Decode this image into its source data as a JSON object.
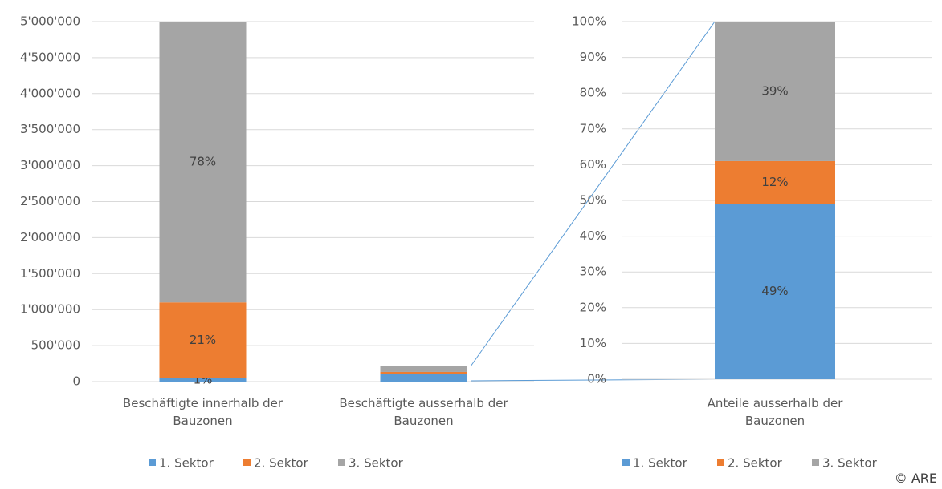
{
  "chart_data": [
    {
      "type": "stacked_bar",
      "categories": [
        "Beschäftigte innerhalb der Bauzonen",
        "Beschäftigte ausserhalb der Bauzonen"
      ],
      "series": [
        {
          "name": "1. Sektor",
          "color": "#5b9bd5",
          "values": [
            50000,
            108000
          ],
          "share_labels": [
            "1%",
            null
          ]
        },
        {
          "name": "2. Sektor",
          "color": "#ed7d31",
          "values": [
            1050000,
            26000
          ],
          "share_labels": [
            "21%",
            null
          ]
        },
        {
          "name": "3. Sektor",
          "color": "#a5a5a5",
          "values": [
            3900000,
            86000
          ],
          "share_labels": [
            "78%",
            null
          ]
        }
      ],
      "ylim": [
        0,
        5000000
      ],
      "yticks": [
        0,
        {
          "value": 500000,
          "label": "500'000"
        },
        {
          "value": 1000000,
          "label": "1'000'000"
        },
        {
          "value": 1500000,
          "label": "1'500'000"
        },
        {
          "value": 2000000,
          "label": "2'000'000"
        },
        {
          "value": 2500000,
          "label": "2'500'000"
        },
        {
          "value": 3000000,
          "label": "3'000'000"
        },
        {
          "value": 3500000,
          "label": "3'500'000"
        },
        {
          "value": 4000000,
          "label": "4'000'000"
        },
        {
          "value": 4500000,
          "label": "4'500'000"
        },
        {
          "value": 5000000,
          "label": "5'000'000"
        }
      ],
      "grid": true,
      "legend": "bottom"
    },
    {
      "type": "stacked_bar",
      "categories": [
        "Anteile ausserhalb der Bauzonen"
      ],
      "series": [
        {
          "name": "1. Sektor",
          "color": "#5b9bd5",
          "values": [
            49
          ],
          "value_labels": [
            "49%"
          ]
        },
        {
          "name": "2. Sektor",
          "color": "#ed7d31",
          "values": [
            12
          ],
          "value_labels": [
            "12%"
          ]
        },
        {
          "name": "3. Sektor",
          "color": "#a5a5a5",
          "values": [
            39
          ],
          "value_labels": [
            "39%"
          ]
        }
      ],
      "ylim": [
        0,
        100
      ],
      "yticks": [
        {
          "value": 0,
          "label": "0%"
        },
        {
          "value": 10,
          "label": "10%"
        },
        {
          "value": 20,
          "label": "20%"
        },
        {
          "value": 30,
          "label": "30%"
        },
        {
          "value": 40,
          "label": "40%"
        },
        {
          "value": 50,
          "label": "50%"
        },
        {
          "value": 60,
          "label": "60%"
        },
        {
          "value": 70,
          "label": "70%"
        },
        {
          "value": 80,
          "label": "80%"
        },
        {
          "value": 90,
          "label": "90%"
        },
        {
          "value": 100,
          "label": "100%"
        }
      ],
      "grid": true,
      "legend": "bottom"
    }
  ],
  "credit": "© ARE"
}
